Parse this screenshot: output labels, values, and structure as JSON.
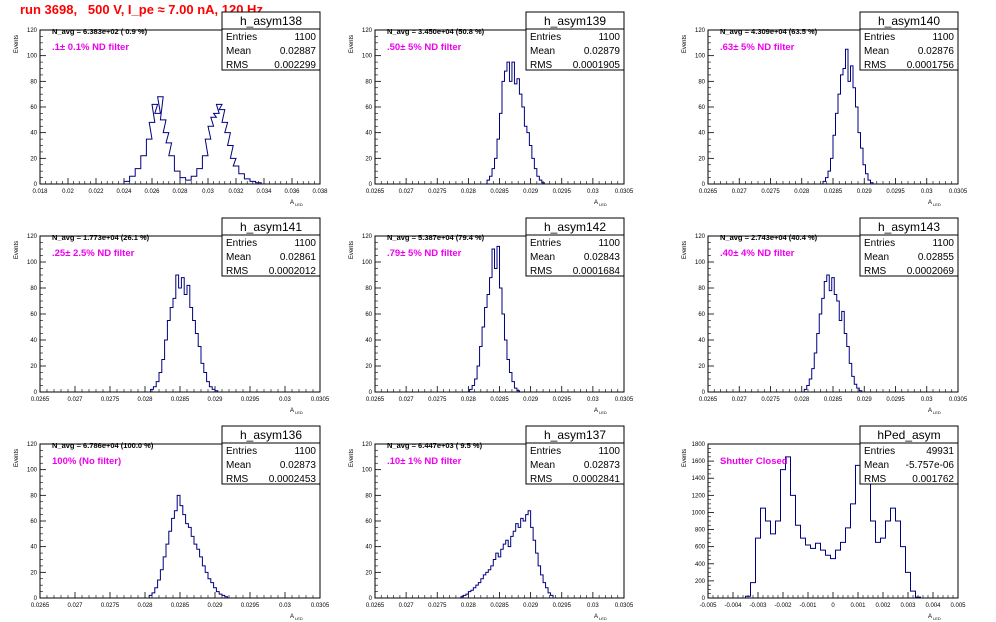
{
  "page": {
    "run_title": "run 3698,   500 V, I_pe ≈ 7.00 nA, 120 Hz"
  },
  "chart_data": [
    {
      "type": "histogram",
      "title": "h_asym138",
      "ylabel": "Events",
      "xlabel": "A_LED",
      "xlim": [
        0.018,
        0.038
      ],
      "ylim": [
        0,
        120
      ],
      "xticks": [
        0.018,
        0.02,
        0.022,
        0.024,
        0.026,
        0.028,
        0.03,
        0.032,
        0.034,
        0.036,
        0.038
      ],
      "xtick_labels": [
        "0.018",
        "0.02",
        "0.022",
        "0.024",
        "0.026",
        "0.028",
        "0.03",
        "0.032",
        "0.034",
        "0.036",
        "0.038"
      ],
      "yticks": [
        0,
        20,
        40,
        60,
        80,
        100,
        120
      ],
      "stats": {
        "entries": "1100",
        "mean": "0.02887",
        "rms": "0.002299"
      },
      "stats_labels": [
        "Entries",
        "Mean",
        "RMS"
      ],
      "n_avg": "N_avg = 6.383e+02 ( 0.9 %)",
      "filter_label": ".1± 0.1% ND filter",
      "bins": {
        "x": [
          0.0242,
          0.0246,
          0.025,
          0.0254,
          0.0258,
          0.026,
          0.0262,
          0.0264,
          0.0266,
          0.0268,
          0.027,
          0.0272,
          0.0274,
          0.0278,
          0.0282,
          0.0286,
          0.029,
          0.0294,
          0.0298,
          0.03,
          0.0302,
          0.0304,
          0.0306,
          0.0308,
          0.031,
          0.0312,
          0.0314,
          0.0316,
          0.0318,
          0.032,
          0.0324,
          0.0328,
          0.0332,
          0.0336
        ],
        "y": [
          2,
          6,
          12,
          22,
          35,
          48,
          62,
          55,
          68,
          50,
          40,
          32,
          22,
          10,
          5,
          3,
          6,
          12,
          22,
          35,
          45,
          52,
          55,
          62,
          58,
          48,
          40,
          30,
          20,
          14,
          8,
          4,
          2,
          1
        ]
      }
    },
    {
      "type": "histogram",
      "title": "h_asym139",
      "ylabel": "Events",
      "xlabel": "A_LED",
      "xlim": [
        0.0265,
        0.0305
      ],
      "ylim": [
        0,
        120
      ],
      "xticks": [
        0.0265,
        0.027,
        0.0275,
        0.028,
        0.0285,
        0.029,
        0.0295,
        0.03,
        0.0305
      ],
      "xtick_labels": [
        "0.0265",
        "0.027",
        "0.0275",
        "0.028",
        "0.0285",
        "0.029",
        "0.0295",
        "0.03",
        "0.0305"
      ],
      "yticks": [
        0,
        20,
        40,
        60,
        80,
        100,
        120
      ],
      "stats": {
        "entries": "1100",
        "mean": "0.02879",
        "rms": "0.0001905"
      },
      "stats_labels": [
        "Entries",
        "Mean",
        "RMS"
      ],
      "n_avg": "N_avg = 3.450e+04 (50.8 %)",
      "filter_label": ".50± 5% ND filter",
      "bins": {
        "x": [
          0.02832,
          0.02836,
          0.0284,
          0.02844,
          0.02848,
          0.02852,
          0.02856,
          0.0286,
          0.02864,
          0.02868,
          0.02872,
          0.02876,
          0.0288,
          0.02884,
          0.02888,
          0.02892,
          0.02896,
          0.029,
          0.02904,
          0.02908,
          0.02912,
          0.02916,
          0.0292
        ],
        "y": [
          3,
          6,
          12,
          20,
          35,
          55,
          80,
          88,
          95,
          80,
          95,
          78,
          82,
          70,
          60,
          45,
          40,
          30,
          20,
          12,
          6,
          3,
          1
        ]
      }
    },
    {
      "type": "histogram",
      "title": "h_asym140",
      "ylabel": "Events",
      "xlabel": "A_LED",
      "xlim": [
        0.0265,
        0.0305
      ],
      "ylim": [
        0,
        120
      ],
      "xticks": [
        0.0265,
        0.027,
        0.0275,
        0.028,
        0.0285,
        0.029,
        0.0295,
        0.03,
        0.0305
      ],
      "xtick_labels": [
        "0.0265",
        "0.027",
        "0.0275",
        "0.028",
        "0.0285",
        "0.029",
        "0.0295",
        "0.03",
        "0.0305"
      ],
      "yticks": [
        0,
        20,
        40,
        60,
        80,
        100,
        120
      ],
      "stats": {
        "entries": "1100",
        "mean": "0.02876",
        "rms": "0.0001756"
      },
      "stats_labels": [
        "Entries",
        "Mean",
        "RMS"
      ],
      "n_avg": "N_avg = 4.309e+04 (63.5 %)",
      "filter_label": ".63± 5% ND filter",
      "bins": {
        "x": [
          0.02836,
          0.0284,
          0.02844,
          0.02848,
          0.02852,
          0.02856,
          0.0286,
          0.02864,
          0.02868,
          0.02872,
          0.02876,
          0.0288,
          0.02884,
          0.02888,
          0.02892,
          0.02896,
          0.029,
          0.02904,
          0.02908,
          0.02912
        ],
        "y": [
          2,
          5,
          10,
          20,
          38,
          55,
          70,
          85,
          90,
          105,
          80,
          92,
          75,
          60,
          40,
          28,
          15,
          8,
          3,
          1
        ]
      }
    },
    {
      "type": "histogram",
      "title": "h_asym141",
      "ylabel": "Events",
      "xlabel": "A_LED",
      "xlim": [
        0.0265,
        0.0305
      ],
      "ylim": [
        0,
        120
      ],
      "xticks": [
        0.0265,
        0.027,
        0.0275,
        0.028,
        0.0285,
        0.029,
        0.0295,
        0.03,
        0.0305
      ],
      "xtick_labels": [
        "0.0265",
        "0.027",
        "0.0275",
        "0.028",
        "0.0285",
        "0.029",
        "0.0295",
        "0.03",
        "0.0305"
      ],
      "yticks": [
        0,
        20,
        40,
        60,
        80,
        100,
        120
      ],
      "stats": {
        "entries": "1100",
        "mean": "0.02861",
        "rms": "0.0002012"
      },
      "stats_labels": [
        "Entries",
        "Mean",
        "RMS"
      ],
      "n_avg": "N_avg = 1.773e+04 (26.1 %)",
      "filter_label": ".25± 2.5% ND filter",
      "bins": {
        "x": [
          0.0281,
          0.02814,
          0.02818,
          0.02822,
          0.02826,
          0.0283,
          0.02834,
          0.02838,
          0.02842,
          0.02846,
          0.0285,
          0.02854,
          0.02858,
          0.02862,
          0.02866,
          0.0287,
          0.02874,
          0.02878,
          0.02882,
          0.02886,
          0.0289,
          0.02894,
          0.02898,
          0.02902
        ],
        "y": [
          2,
          4,
          8,
          15,
          25,
          40,
          55,
          65,
          72,
          90,
          80,
          88,
          75,
          82,
          65,
          55,
          45,
          35,
          22,
          15,
          8,
          4,
          2,
          1
        ]
      }
    },
    {
      "type": "histogram",
      "title": "h_asym142",
      "ylabel": "Events",
      "xlabel": "A_LED",
      "xlim": [
        0.0265,
        0.0305
      ],
      "ylim": [
        0,
        120
      ],
      "xticks": [
        0.0265,
        0.027,
        0.0275,
        0.028,
        0.0285,
        0.029,
        0.0295,
        0.03,
        0.0305
      ],
      "xtick_labels": [
        "0.0265",
        "0.027",
        "0.0275",
        "0.028",
        "0.0285",
        "0.029",
        "0.0295",
        "0.03",
        "0.0305"
      ],
      "yticks": [
        0,
        20,
        40,
        60,
        80,
        100,
        120
      ],
      "stats": {
        "entries": "1100",
        "mean": "0.02843",
        "rms": "0.0001684"
      },
      "stats_labels": [
        "Entries",
        "Mean",
        "RMS"
      ],
      "n_avg": "N_avg = 5.387e+04 (79.4 %)",
      "filter_label": ".79± 5% ND filter",
      "bins": {
        "x": [
          0.02804,
          0.02808,
          0.02812,
          0.02816,
          0.0282,
          0.02824,
          0.02828,
          0.02832,
          0.02836,
          0.0284,
          0.02844,
          0.02848,
          0.02852,
          0.02856,
          0.0286,
          0.02864,
          0.02868,
          0.02872,
          0.02876,
          0.0288
        ],
        "y": [
          2,
          5,
          10,
          20,
          35,
          50,
          65,
          75,
          88,
          110,
          95,
          112,
          80,
          60,
          40,
          25,
          15,
          8,
          3,
          1
        ]
      }
    },
    {
      "type": "histogram",
      "title": "h_asym143",
      "ylabel": "Events",
      "xlabel": "A_LED",
      "xlim": [
        0.0265,
        0.0305
      ],
      "ylim": [
        0,
        120
      ],
      "xticks": [
        0.0265,
        0.027,
        0.0275,
        0.028,
        0.0285,
        0.029,
        0.0295,
        0.03,
        0.0305
      ],
      "xtick_labels": [
        "0.0265",
        "0.027",
        "0.0275",
        "0.028",
        "0.0285",
        "0.029",
        "0.0295",
        "0.03",
        "0.0305"
      ],
      "yticks": [
        0,
        20,
        40,
        60,
        80,
        100,
        120
      ],
      "stats": {
        "entries": "1100",
        "mean": "0.02855",
        "rms": "0.0002069"
      },
      "stats_labels": [
        "Entries",
        "Mean",
        "RMS"
      ],
      "n_avg": "N_avg = 2.743e+04 (40.4 %)",
      "filter_label": ".40± 4% ND filter",
      "bins": {
        "x": [
          0.02806,
          0.0281,
          0.02814,
          0.02818,
          0.02822,
          0.02826,
          0.0283,
          0.02834,
          0.02838,
          0.02842,
          0.02846,
          0.0285,
          0.02854,
          0.02858,
          0.02862,
          0.02866,
          0.0287,
          0.02874,
          0.02878,
          0.02882,
          0.02886,
          0.0289,
          0.02894
        ],
        "y": [
          2,
          5,
          10,
          18,
          30,
          45,
          60,
          72,
          85,
          90,
          78,
          88,
          75,
          70,
          55,
          62,
          45,
          35,
          22,
          12,
          6,
          3,
          1
        ]
      }
    },
    {
      "type": "histogram",
      "title": "h_asym136",
      "ylabel": "Events",
      "xlabel": "A_LED",
      "xlim": [
        0.0265,
        0.0305
      ],
      "ylim": [
        0,
        120
      ],
      "xticks": [
        0.0265,
        0.027,
        0.0275,
        0.028,
        0.0285,
        0.029,
        0.0295,
        0.03,
        0.0305
      ],
      "xtick_labels": [
        "0.0265",
        "0.027",
        "0.0275",
        "0.028",
        "0.0285",
        "0.029",
        "0.0295",
        "0.03",
        "0.0305"
      ],
      "yticks": [
        0,
        20,
        40,
        60,
        80,
        100,
        120
      ],
      "stats": {
        "entries": "1100",
        "mean": "0.02873",
        "rms": "0.0002453"
      },
      "stats_labels": [
        "Entries",
        "Mean",
        "RMS"
      ],
      "n_avg": "N_avg = 6.786e+04 (100.0 %)",
      "filter_label": "100% (No filter)",
      "bins": {
        "x": [
          0.02808,
          0.02812,
          0.02816,
          0.0282,
          0.02824,
          0.02828,
          0.02832,
          0.02836,
          0.0284,
          0.02844,
          0.02848,
          0.02852,
          0.02856,
          0.0286,
          0.02864,
          0.02868,
          0.02872,
          0.02876,
          0.0288,
          0.02884,
          0.02888,
          0.02892,
          0.02896,
          0.029,
          0.02904,
          0.02908,
          0.02912,
          0.02916
        ],
        "y": [
          2,
          4,
          8,
          14,
          22,
          32,
          42,
          52,
          62,
          68,
          80,
          72,
          65,
          58,
          55,
          48,
          42,
          38,
          32,
          25,
          20,
          15,
          12,
          8,
          5,
          3,
          2,
          1
        ]
      }
    },
    {
      "type": "histogram",
      "title": "h_asym137",
      "ylabel": "Events",
      "xlabel": "A_LED",
      "xlim": [
        0.0265,
        0.0305
      ],
      "ylim": [
        0,
        120
      ],
      "xticks": [
        0.0265,
        0.027,
        0.0275,
        0.028,
        0.0285,
        0.029,
        0.0295,
        0.03,
        0.0305
      ],
      "xtick_labels": [
        "0.0265",
        "0.027",
        "0.0275",
        "0.028",
        "0.0285",
        "0.029",
        "0.0295",
        "0.03",
        "0.0305"
      ],
      "yticks": [
        0,
        20,
        40,
        60,
        80,
        100,
        120
      ],
      "stats": {
        "entries": "1100",
        "mean": "0.02873",
        "rms": "0.0002841"
      },
      "stats_labels": [
        "Entries",
        "Mean",
        "RMS"
      ],
      "n_avg": "N_avg = 6.447e+03 ( 9.5 %)",
      "filter_label": ".10± 1% ND filter",
      "bins": {
        "x": [
          0.0279,
          0.02794,
          0.02798,
          0.02802,
          0.02806,
          0.0281,
          0.02814,
          0.02818,
          0.02822,
          0.02826,
          0.0283,
          0.02834,
          0.02838,
          0.02842,
          0.02846,
          0.0285,
          0.02854,
          0.02858,
          0.02862,
          0.02866,
          0.0287,
          0.02874,
          0.02878,
          0.02882,
          0.02886,
          0.0289,
          0.02894,
          0.02898,
          0.02902,
          0.02906,
          0.0291,
          0.02914,
          0.02918,
          0.02922,
          0.02926,
          0.0293,
          0.02934
        ],
        "y": [
          1,
          2,
          3,
          5,
          6,
          8,
          10,
          12,
          15,
          18,
          20,
          22,
          25,
          30,
          35,
          32,
          38,
          42,
          45,
          40,
          48,
          52,
          58,
          55,
          62,
          60,
          65,
          68,
          55,
          45,
          35,
          25,
          18,
          12,
          8,
          4,
          2
        ]
      }
    },
    {
      "type": "histogram",
      "title": "hPed_asym",
      "ylabel": "Events",
      "xlabel": "A_LED",
      "xlim": [
        -0.005,
        0.005
      ],
      "ylim": [
        0,
        1800
      ],
      "xticks": [
        -0.005,
        -0.004,
        -0.003,
        -0.002,
        -0.001,
        0,
        0.001,
        0.002,
        0.003,
        0.004,
        0.005
      ],
      "xtick_labels": [
        "-0.005",
        "-0.004",
        "-0.003",
        "-0.002",
        "-0.001",
        "0",
        "0.001",
        "0.002",
        "0.003",
        "0.004",
        "0.005"
      ],
      "yticks": [
        0,
        200,
        400,
        600,
        800,
        1000,
        1200,
        1400,
        1600,
        1800
      ],
      "stats": {
        "entries": "49931",
        "mean": "-5.757e-06",
        "rms": "0.001762"
      },
      "stats_labels": [
        "Entries",
        "Mean",
        "RMS"
      ],
      "n_avg": "",
      "filter_label": "Shutter Closed",
      "bins": {
        "x": [
          -0.0034,
          -0.0032,
          -0.003,
          -0.0028,
          -0.0026,
          -0.0024,
          -0.0022,
          -0.002,
          -0.0018,
          -0.0016,
          -0.0014,
          -0.0012,
          -0.001,
          -0.0008,
          -0.0006,
          -0.0004,
          -0.0002,
          0,
          0.0002,
          0.0004,
          0.0006,
          0.0008,
          0.001,
          0.0012,
          0.0014,
          0.0016,
          0.0018,
          0.002,
          0.0022,
          0.0024,
          0.0026,
          0.0028,
          0.003,
          0.0032,
          0.0034
        ],
        "y": [
          20,
          180,
          700,
          1050,
          900,
          750,
          900,
          1500,
          1650,
          1200,
          850,
          700,
          620,
          580,
          640,
          560,
          500,
          460,
          560,
          650,
          820,
          1100,
          1550,
          1700,
          1350,
          900,
          650,
          700,
          900,
          1050,
          900,
          600,
          300,
          80,
          10
        ]
      }
    }
  ]
}
